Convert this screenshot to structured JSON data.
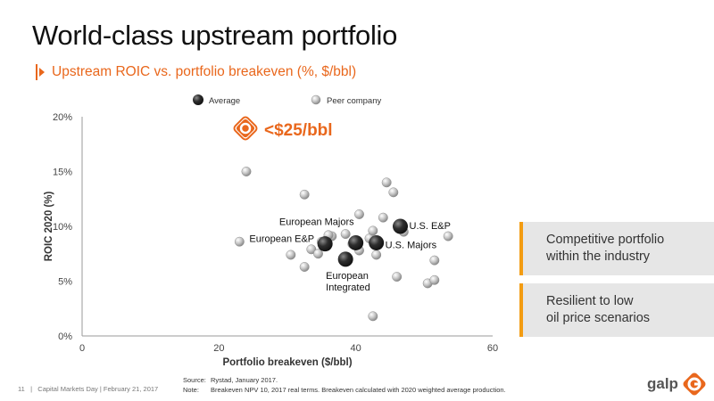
{
  "slide": {
    "title": "World-class upstream portfolio",
    "subtitle": "Upstream ROIC vs. portfolio breakeven (%, $/bbl)"
  },
  "callout": {
    "text": "<$25/bbl",
    "color": "#e9671c"
  },
  "colors": {
    "accent": "#e9671c",
    "card_bar": "#f39c12",
    "card_bg": "#e6e6e6"
  },
  "chart_data": {
    "type": "scatter",
    "xlabel": "Portfolio breakeven ($/bbl)",
    "ylabel": "ROIC 2020 (%)",
    "xlim": [
      0,
      60
    ],
    "ylim": [
      0,
      20
    ],
    "x_ticks": [
      0,
      20,
      40,
      60
    ],
    "x_tick_labels": [
      "0",
      "20",
      "40",
      "60"
    ],
    "y_ticks": [
      0,
      5,
      10,
      15,
      20
    ],
    "y_tick_labels": [
      "0%",
      "5%",
      "10%",
      "15%",
      "20%"
    ],
    "legend_placement": "top",
    "grid": false,
    "series": [
      {
        "name": "Average",
        "color": "#333333",
        "points": [
          {
            "x": 35.5,
            "y": 8.4,
            "label": "European E&P"
          },
          {
            "x": 40.0,
            "y": 8.5,
            "label": "European Majors"
          },
          {
            "x": 38.5,
            "y": 7.0,
            "label": "European\nIntegrated"
          },
          {
            "x": 43.0,
            "y": 8.5,
            "label": "U.S. Majors"
          },
          {
            "x": 46.5,
            "y": 10.0,
            "label": "U.S. E&P"
          }
        ]
      },
      {
        "name": "Peer company",
        "color": "#b8b8b8",
        "points": [
          {
            "x": 24,
            "y": 15
          },
          {
            "x": 23,
            "y": 8.6
          },
          {
            "x": 32.5,
            "y": 12.9
          },
          {
            "x": 30.5,
            "y": 7.4
          },
          {
            "x": 32.5,
            "y": 6.3
          },
          {
            "x": 33.5,
            "y": 7.9
          },
          {
            "x": 34.5,
            "y": 7.5
          },
          {
            "x": 35.0,
            "y": 8.6
          },
          {
            "x": 36.5,
            "y": 9.1
          },
          {
            "x": 36.0,
            "y": 9.2
          },
          {
            "x": 38.5,
            "y": 9.3
          },
          {
            "x": 39.5,
            "y": 8.4
          },
          {
            "x": 40.5,
            "y": 7.8
          },
          {
            "x": 40.5,
            "y": 11.1
          },
          {
            "x": 42.0,
            "y": 8.9
          },
          {
            "x": 42.5,
            "y": 9.6
          },
          {
            "x": 43.0,
            "y": 7.4
          },
          {
            "x": 44.0,
            "y": 10.8
          },
          {
            "x": 44.5,
            "y": 14.0
          },
          {
            "x": 45.5,
            "y": 13.1
          },
          {
            "x": 46.0,
            "y": 5.4
          },
          {
            "x": 47.0,
            "y": 9.5
          },
          {
            "x": 50.5,
            "y": 4.8
          },
          {
            "x": 51.5,
            "y": 5.1
          },
          {
            "x": 51.5,
            "y": 6.9
          },
          {
            "x": 53.5,
            "y": 9.1
          },
          {
            "x": 42.5,
            "y": 1.8
          }
        ]
      }
    ]
  },
  "cards": [
    {
      "text": "Competitive portfolio\nwithin the industry"
    },
    {
      "text": "Resilient to low\noil price scenarios"
    }
  ],
  "footer": {
    "page_number": "11",
    "separator": "|",
    "event": "Capital Markets Day | February 21, 2017",
    "source_label": "Source:",
    "source_text": "Rystad, January 2017.",
    "note_label": "Note:",
    "note_text": "Breakeven NPV 10, 2017 real terms. Breakeven calculated with 2020 weighted average production.",
    "brand": "galp"
  }
}
